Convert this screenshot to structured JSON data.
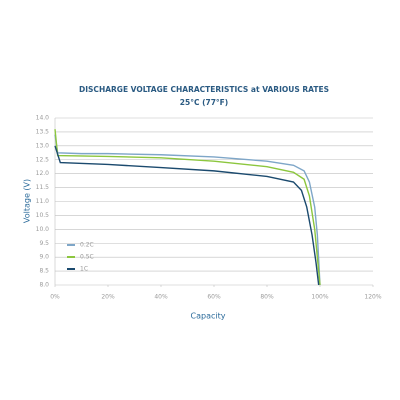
{
  "chart_data": {
    "type": "line",
    "title": "DISCHARGE VOLTAGE CHARACTERISTICS at VARIOUS RATES",
    "subtitle": "25°C (77°F)",
    "x_label": "Capacity",
    "y_label": "Voltage (V)",
    "xlim": [
      0,
      120
    ],
    "xticks": [
      {
        "value": 0,
        "label": "0%"
      },
      {
        "value": 20,
        "label": "20%"
      },
      {
        "value": 40,
        "label": "40%"
      },
      {
        "value": 60,
        "label": "60%"
      },
      {
        "value": 80,
        "label": "80%"
      },
      {
        "value": 100,
        "label": "100%"
      },
      {
        "value": 120,
        "label": "120%"
      }
    ],
    "ylim": [
      8,
      14
    ],
    "yticks": [
      {
        "value": 8,
        "label": "8.0"
      },
      8.5,
      {
        "value": 9,
        "label": "9.0"
      },
      9.5,
      {
        "value": 10,
        "label": "10.0"
      },
      10.5,
      {
        "value": 11,
        "label": "11.0"
      },
      11.5,
      {
        "value": 12,
        "label": "12.0"
      },
      12.5,
      {
        "value": 13,
        "label": "13.0"
      },
      13.5,
      {
        "value": 14,
        "label": "14.0"
      }
    ],
    "grid": true,
    "legend": "lower left",
    "series": [
      {
        "name": "0.2C",
        "color": "#7ea6c8",
        "x": [
          0,
          1,
          10,
          20,
          40,
          60,
          80,
          90,
          94,
          96,
          98,
          99,
          100
        ],
        "values": [
          13.4,
          12.75,
          12.72,
          12.72,
          12.68,
          12.6,
          12.45,
          12.3,
          12.1,
          11.7,
          10.8,
          9.8,
          8.0
        ]
      },
      {
        "name": "0.5C",
        "color": "#8cc63e",
        "x": [
          0,
          1,
          20,
          40,
          60,
          80,
          90,
          94,
          96,
          98,
          99,
          100
        ],
        "values": [
          13.6,
          12.65,
          12.62,
          12.57,
          12.45,
          12.25,
          12.05,
          11.8,
          11.2,
          10.0,
          9.0,
          8.0
        ]
      },
      {
        "name": "1C",
        "color": "#1b4a6e",
        "x": [
          0,
          2,
          20,
          40,
          60,
          80,
          90,
          93,
          95,
          97,
          98.5,
          99.5
        ],
        "values": [
          13.0,
          12.4,
          12.33,
          12.22,
          12.1,
          11.9,
          11.7,
          11.4,
          10.8,
          9.8,
          8.8,
          8.0
        ]
      }
    ]
  }
}
